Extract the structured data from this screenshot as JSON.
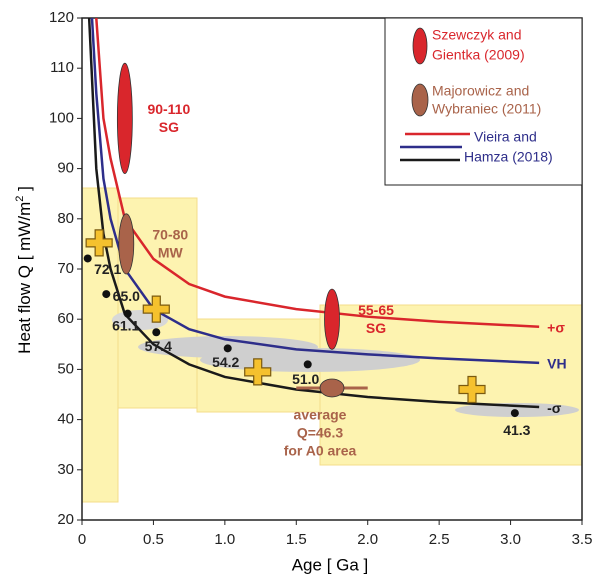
{
  "chart_data": {
    "type": "line",
    "xlabel": "Age  [ Ga ]",
    "ylabel": "Heat flow Q  [ mW/m",
    "ylabel_sup": "2",
    "ylabel_end": " ]",
    "xlim": [
      0,
      3.5
    ],
    "xticks": [
      0,
      0.5,
      {
        "value": 1,
        "label": "1.0"
      },
      1.5,
      {
        "value": 2,
        "label": "2.0"
      },
      2.5,
      {
        "value": 3,
        "label": "3.0"
      },
      3.5
    ],
    "ylim": [
      20,
      120
    ],
    "yticks": [
      20,
      30,
      40,
      50,
      60,
      70,
      80,
      90,
      100,
      110,
      120
    ],
    "series": [
      {
        "name": "+σ",
        "color": "#d9262c",
        "x": [
          0.1,
          0.15,
          0.2,
          0.3,
          0.5,
          0.75,
          1.0,
          1.5,
          2.0,
          2.5,
          3.2
        ],
        "values": [
          120,
          100,
          92,
          80,
          72,
          67,
          64.5,
          62,
          60.5,
          59.5,
          58.5
        ]
      },
      {
        "name": "VH",
        "color": "#2e2e8a",
        "x": [
          0.07,
          0.1,
          0.15,
          0.2,
          0.3,
          0.5,
          0.75,
          1.0,
          1.5,
          2.0,
          2.5,
          3.2
        ],
        "values": [
          120,
          105,
          88,
          80,
          70,
          62,
          58,
          56,
          54,
          53,
          52.2,
          51.3
        ]
      },
      {
        "name": "-σ",
        "color": "#1a1a1a",
        "x": [
          0.05,
          0.1,
          0.15,
          0.2,
          0.3,
          0.5,
          0.75,
          1.0,
          1.5,
          2.0,
          2.5,
          3.2
        ],
        "values": [
          120,
          90,
          77,
          70,
          61,
          55,
          51,
          48.5,
          46,
          44.5,
          43.5,
          42.5
        ]
      }
    ],
    "points": {
      "color": "#111111",
      "x": [
        0.04,
        0.17,
        0.32,
        0.52,
        1.02,
        1.58,
        3.03
      ],
      "values": [
        72.1,
        65.0,
        61.1,
        57.4,
        54.2,
        51.0,
        41.3
      ],
      "value_labels": [
        "72.1",
        "65.0",
        "61.1",
        "57.4",
        "54.2",
        "51.0",
        "41.3"
      ]
    },
    "crosses": {
      "color": "#f5c12e",
      "x": [
        0.12,
        0.52,
        1.23,
        2.73
      ],
      "values": [
        75.2,
        62,
        49.5,
        46
      ]
    },
    "ranges": [
      {
        "label": [
          "90-110",
          "SG"
        ],
        "color": "#d9262c",
        "x": 0.3,
        "low": 90,
        "high": 110
      },
      {
        "label": [
          "70-80",
          "MW"
        ],
        "color": "#a9634a",
        "x": 0.31,
        "low": 70,
        "high": 80
      },
      {
        "label": [
          "55-65",
          "SG"
        ],
        "color": "#d9262c",
        "x": 1.75,
        "low": 55,
        "high": 65
      }
    ],
    "average": {
      "label": [
        "average",
        "Q=46.3",
        "for A0 area"
      ],
      "color": "#a9634a",
      "value": 46.3,
      "x": 1.75,
      "xrange": [
        1.5,
        2.0
      ]
    },
    "legend": [
      {
        "label": [
          "Szewczyk and",
          "Gientka (2009)"
        ],
        "color": "#d9262c"
      },
      {
        "label": [
          "Majorowicz and",
          "Wybraniec (2011)"
        ],
        "color": "#a9634a"
      },
      {
        "label": [
          "Vieira and",
          "Hamza (2018)"
        ],
        "color": "#2e2e8a"
      }
    ]
  }
}
